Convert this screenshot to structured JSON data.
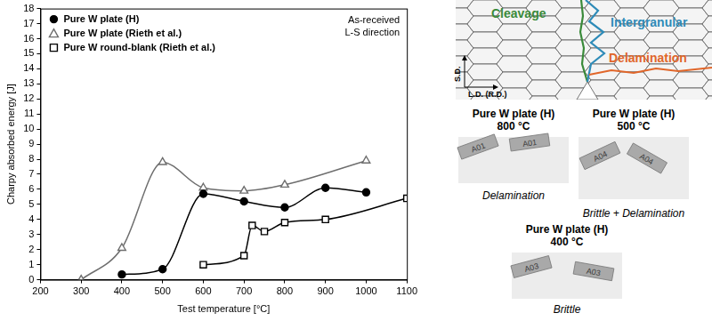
{
  "chart_data": {
    "type": "line",
    "x_label": "Test temperature [°C]",
    "y_label": "Charpy absorbed energy [J]",
    "annotation": [
      "As-received",
      "L-S direction"
    ],
    "xlim": [
      200,
      1100
    ],
    "xticks": [
      200,
      300,
      400,
      500,
      600,
      700,
      800,
      900,
      1000,
      1100
    ],
    "ylim": [
      0,
      18
    ],
    "yticks": [
      0,
      1,
      2,
      3,
      4,
      5,
      6,
      7,
      8,
      9,
      10,
      11,
      12,
      13,
      14,
      15,
      16,
      17,
      18
    ],
    "grid": false,
    "legend": "upper left",
    "series": [
      {
        "name": "Pure W plate (H)",
        "color": "#000000",
        "marker": "circle",
        "line_style": "solid",
        "x": [
          400,
          500,
          600,
          700,
          800,
          900,
          1000
        ],
        "values": [
          0.35,
          0.7,
          5.7,
          5.2,
          4.8,
          6.1,
          5.8
        ]
      },
      {
        "name": "Pure W plate (Rieth et al.)",
        "color": "#6e6e6e",
        "marker": "triangle_open",
        "line_style": "solid",
        "x": [
          300,
          400,
          500,
          600,
          700,
          800,
          1000
        ],
        "values": [
          0,
          2.1,
          7.8,
          6.1,
          5.9,
          6.3,
          7.9
        ]
      },
      {
        "name": "Pure W round-blank (Rieth et al.)",
        "color": "#000000",
        "marker": "square_open",
        "line_style": "solid",
        "x": [
          600,
          700,
          720,
          750,
          800,
          900,
          1100
        ],
        "values": [
          1.0,
          1.6,
          3.6,
          3.2,
          3.8,
          4.0,
          5.4
        ]
      }
    ]
  },
  "diagram": {
    "fracture_modes": [
      {
        "label": "Cleavage",
        "color": "#3a8a3a"
      },
      {
        "label": "Intergranular",
        "color": "#2e8bb8"
      },
      {
        "label": "Delamination",
        "color": "#e0662a"
      }
    ],
    "axes": {
      "vertical": "S.D.",
      "horizontal": "L.D. (R.D.)"
    }
  },
  "specimens": [
    {
      "title": "Pure W plate (H)",
      "temperature": "800 °C",
      "id": "A01",
      "fracture": "Delamination"
    },
    {
      "title": "Pure W plate (H)",
      "temperature": "500 °C",
      "id": "A04",
      "fracture": "Brittle + Delamination"
    },
    {
      "title": "Pure W plate (H)",
      "temperature": "400 °C",
      "id": "A03",
      "fracture": "Brittle"
    }
  ]
}
